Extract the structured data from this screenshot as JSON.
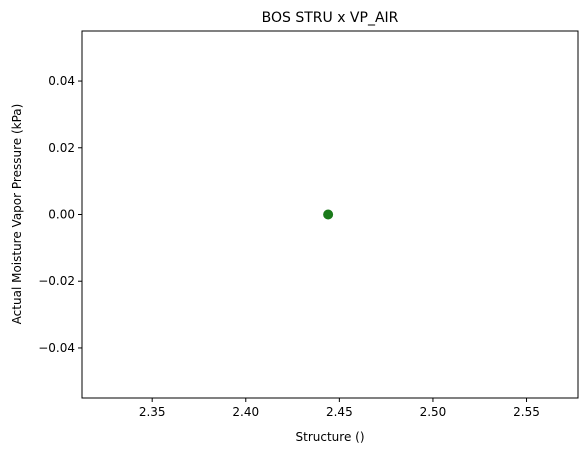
{
  "chart_data": {
    "type": "scatter",
    "title": "BOS STRU x VP_AIR",
    "xlabel": "Structure ()",
    "ylabel": "Actual Moisture Vapor Pressure (kPa)",
    "xlim": [
      2.3125,
      2.5775
    ],
    "ylim": [
      -0.055,
      0.055
    ],
    "xticks": [
      2.35,
      2.4,
      2.45,
      2.5,
      2.55
    ],
    "xtick_labels": [
      "2.35",
      "2.40",
      "2.45",
      "2.50",
      "2.55"
    ],
    "yticks": [
      -0.04,
      -0.02,
      0.0,
      0.02,
      0.04
    ],
    "ytick_labels": [
      "−0.04",
      "−0.02",
      "0.00",
      "0.02",
      "0.04"
    ],
    "grid": false,
    "series": [
      {
        "color": "#1a7a1a",
        "points": [
          {
            "x": 2.444,
            "y": 0.0
          }
        ]
      }
    ]
  }
}
